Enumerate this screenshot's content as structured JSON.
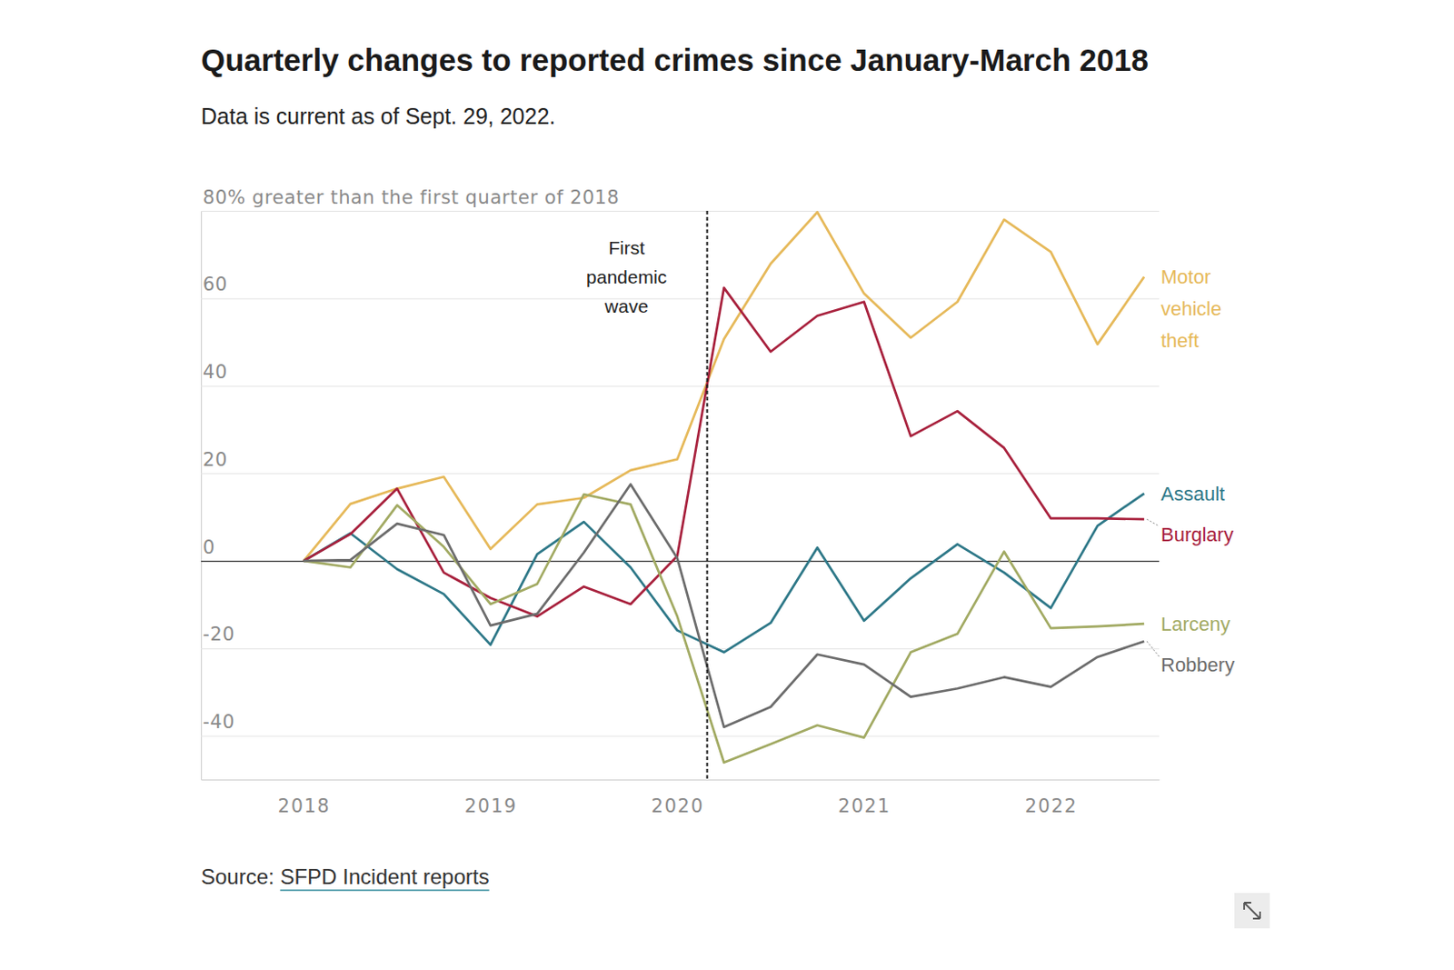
{
  "chart_data": {
    "type": "line",
    "title": "Quarterly changes to reported crimes since January-March 2018",
    "subtitle": "Data is current as of Sept. 29, 2022.",
    "source": "Source: SFPD Incident reports",
    "x": [
      2018,
      2018.25,
      2018.5,
      2018.75,
      2019,
      2019.25,
      2019.5,
      2019.75,
      2020,
      2020.25,
      2020.5,
      2020.75,
      2021,
      2021.25,
      2021.5,
      2021.75,
      2022,
      2022.25,
      2022.5
    ],
    "xlim": [
      2017.45,
      2022.58
    ],
    "xticks": [
      2018,
      2019,
      2020,
      2021,
      2022
    ],
    "ylim": [
      -50,
      80
    ],
    "yticks": [
      -40,
      -20,
      0,
      20,
      40,
      60,
      {
        "value": 80,
        "label": "80% greater than the first quarter of 2018"
      }
    ],
    "grid": true,
    "annotations": [
      {
        "text": "First pandemic wave",
        "x": 2020.16
      }
    ],
    "series": [
      {
        "name": "Motor vehicle theft",
        "color": "#e6b95a",
        "values": [
          0,
          13,
          16.5,
          19.2,
          2.7,
          12.9,
          14.4,
          20.7,
          23.2,
          50.7,
          67.9,
          79.7,
          61.1,
          51,
          59.2,
          78,
          70.6,
          49.5,
          64.9
        ]
      },
      {
        "name": "Assault",
        "color": "#2e7888",
        "values": [
          0,
          6.3,
          -1.9,
          -7.6,
          -19.2,
          1.5,
          8.9,
          -1.5,
          -15.9,
          -20.9,
          -14.2,
          3,
          -13.7,
          -4,
          3.8,
          -2.7,
          -10.8,
          8,
          15.4
        ]
      },
      {
        "name": "Burglary",
        "color": "#a8213d",
        "values": [
          0,
          6.1,
          16.5,
          -2.7,
          -8.5,
          -12.7,
          -5.9,
          -9.9,
          1.1,
          62.4,
          47.8,
          56,
          59.2,
          28.5,
          34.2,
          25.8,
          9.7,
          9.7,
          9.5
        ]
      },
      {
        "name": "Larceny",
        "color": "#a2aa63",
        "values": [
          0,
          -1.5,
          12.7,
          3.2,
          -9.9,
          -5.3,
          15.2,
          12.9,
          -12.7,
          -46.1,
          -41.9,
          -37.6,
          -40.4,
          -20.9,
          -16.7,
          2.1,
          -15.4,
          -15,
          -14.4
        ]
      },
      {
        "name": "Robbery",
        "color": "#6c6c6c",
        "values": [
          0,
          0.2,
          8.5,
          5.9,
          -14.8,
          -12.1,
          1.9,
          17.5,
          0.6,
          -38,
          -33.4,
          -21.4,
          -23.7,
          -31.1,
          -29.2,
          -26.6,
          -28.8,
          -22,
          -18.4
        ]
      }
    ]
  }
}
